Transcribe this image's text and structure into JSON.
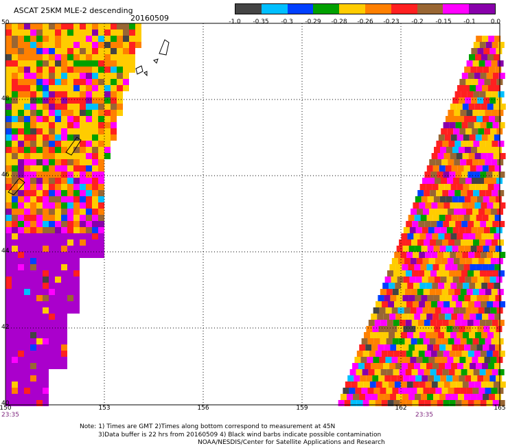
{
  "header": {
    "title": "ASCAT 25KM MLE-2 descending",
    "date": "20160509"
  },
  "colorbar": {
    "colors": [
      "#444444",
      "#00bfff",
      "#0040ff",
      "#00a000",
      "#ffcc00",
      "#ff8000",
      "#ff2020",
      "#996633",
      "#ff00ff",
      "#8800aa"
    ],
    "labels": [
      "-1.0",
      "-0.35",
      "-0.3",
      "-0.29",
      "-0.28",
      "-0.26",
      "-0.23",
      "-0.2",
      "-0.15",
      "-0.1",
      "0.0"
    ]
  },
  "axes": {
    "y_labels": [
      "50",
      "48",
      "46",
      "44",
      "42",
      "40"
    ],
    "x_labels": [
      "150",
      "153",
      "156",
      "159",
      "162",
      "165"
    ]
  },
  "times": [
    "23:35",
    "23:35"
  ],
  "notes": [
    "Note: 1) Times are GMT 2)Times along bottom correspond to measurement at 45N",
    "3)Data buffer is 22 hrs from 20160509 4) Black wind barbs indicate possible contamination",
    "NOAA/NESDIS/Center for Satellite Applications and Research"
  ]
}
